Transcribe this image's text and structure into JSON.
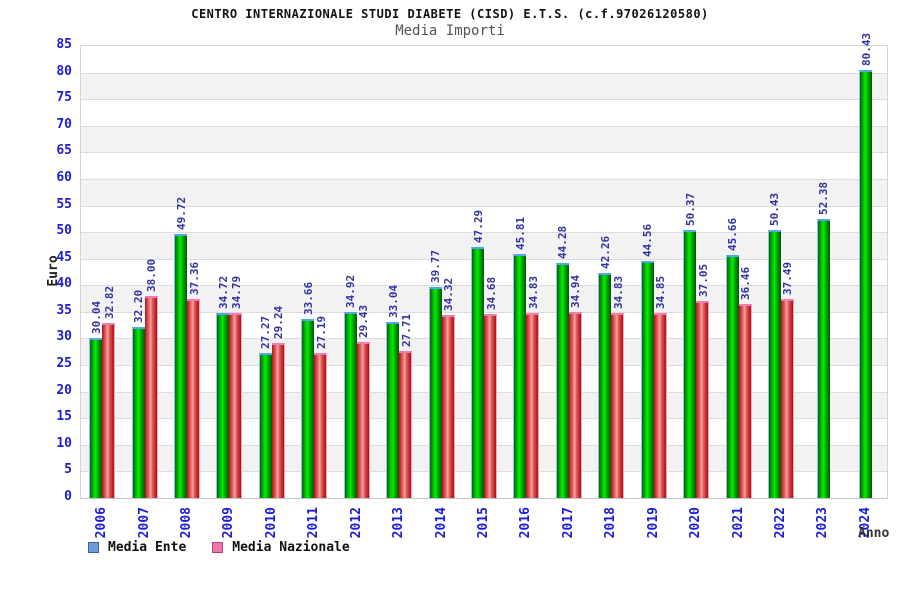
{
  "header": {
    "title": "CENTRO INTERNAZIONALE STUDI DIABETE (CISD) E.T.S. (c.f.97026120580)",
    "subtitle": "Media Importi"
  },
  "chart_data": {
    "type": "bar",
    "title": "Media Importi",
    "xlabel": "Anno",
    "ylabel": "Euro",
    "ylim": [
      0,
      85
    ],
    "ytick_step": 5,
    "grid": "horizontal",
    "legend_position": "bottom-left",
    "categories": [
      "2006",
      "2007",
      "2008",
      "2009",
      "2010",
      "2011",
      "2012",
      "2013",
      "2014",
      "2015",
      "2016",
      "2017",
      "2018",
      "2019",
      "2020",
      "2021",
      "2022",
      "2023",
      "2024"
    ],
    "series": [
      {
        "name": "Media Ente",
        "values": [
          30.04,
          32.2,
          49.72,
          34.72,
          27.27,
          33.66,
          34.92,
          33.04,
          39.77,
          47.29,
          45.81,
          44.28,
          42.26,
          44.56,
          50.37,
          45.66,
          50.43,
          52.38,
          80.43
        ]
      },
      {
        "name": "Media Nazionale",
        "values": [
          32.82,
          38.0,
          37.36,
          34.79,
          29.24,
          27.19,
          29.43,
          27.71,
          34.32,
          34.68,
          34.83,
          34.94,
          34.83,
          34.85,
          37.05,
          36.46,
          37.49,
          null,
          null
        ]
      }
    ]
  },
  "colors": {
    "bar_ente": "#00c800",
    "bar_ente_cap": "#55a5e8",
    "bar_nazionale": "#e05858",
    "bar_nazionale_cap": "#f07cb4",
    "legend_ente_swatch": "#6b9bd8",
    "legend_nazionale_swatch": "#ee77aa",
    "axis_text": "#1c1cd8",
    "value_text": "#3333a0",
    "band_gray": "#f2f2f2",
    "gridline": "#dcdcdc"
  },
  "legend": {
    "items": [
      {
        "label": "Media Ente"
      },
      {
        "label": "Media Nazionale"
      }
    ]
  }
}
